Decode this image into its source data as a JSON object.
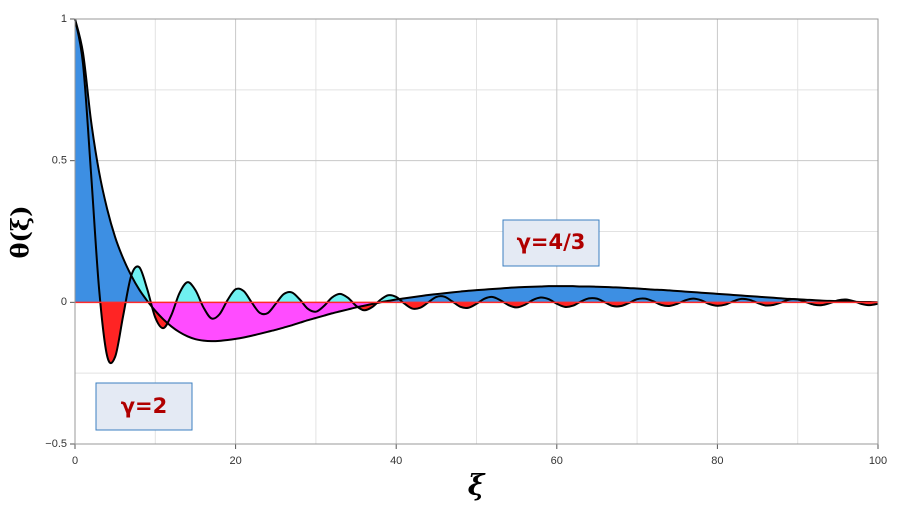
{
  "chart_data": {
    "type": "line",
    "x_label": "ξ",
    "y_label": "θ(ξ)",
    "xlim": [
      0,
      100
    ],
    "ylim": [
      -0.5,
      1
    ],
    "xticks": [
      0,
      20,
      40,
      60,
      80,
      100
    ],
    "yticks": [
      {
        "value": -0.5,
        "label": "−0.5"
      },
      0,
      0.5,
      1
    ],
    "x_minor_ticks": [
      10,
      30,
      50,
      70,
      90
    ],
    "y_minor_ticks": [
      -0.25,
      0.25,
      0.75
    ],
    "grid": true,
    "zero_line_color": "#ff2a2a",
    "x": [
      0,
      1,
      2,
      3,
      4,
      5,
      6,
      7,
      8,
      9,
      10,
      11,
      12,
      13,
      14,
      15,
      16,
      17,
      18,
      19,
      20,
      21,
      22,
      23,
      24,
      25,
      26,
      27,
      28,
      29,
      30,
      31,
      32,
      33,
      34,
      35,
      36,
      37,
      38,
      39,
      40,
      41,
      42,
      43,
      44,
      45,
      46,
      47,
      48,
      49,
      50,
      51,
      52,
      53,
      54,
      55,
      56,
      57,
      58,
      59,
      60,
      61,
      62,
      63,
      64,
      65,
      66,
      67,
      68,
      69,
      70,
      71,
      72,
      73,
      74,
      75,
      76,
      77,
      78,
      79,
      80,
      81,
      82,
      83,
      84,
      85,
      86,
      87,
      88,
      89,
      90,
      91,
      92,
      93,
      94,
      95,
      96,
      97,
      98,
      99,
      100
    ],
    "series": [
      {
        "name": "γ=2",
        "color": "#000000",
        "fill_positive": "#6ff0f0",
        "fill_negative": "#ff2424",
        "values": [
          1,
          0.841,
          0.455,
          0.047,
          -0.189,
          -0.192,
          -0.047,
          0.094,
          0.124,
          0.046,
          -0.054,
          -0.091,
          -0.045,
          0.032,
          0.071,
          0.043,
          -0.018,
          -0.057,
          -0.042,
          0.008,
          0.046,
          0.04,
          0,
          -0.037,
          -0.038,
          -0.005,
          0.029,
          0.035,
          0.01,
          -0.023,
          -0.033,
          -0.013,
          0.017,
          0.03,
          0.016,
          -0.012,
          -0.028,
          -0.017,
          0.008,
          0.025,
          0.019,
          -0.004,
          -0.022,
          -0.019,
          0,
          0.019,
          0.02,
          0.003,
          -0.016,
          -0.019,
          -0.005,
          0.013,
          0.019,
          0.007,
          -0.01,
          -0.018,
          -0.009,
          0.008,
          0.017,
          0.011,
          -0.005,
          -0.016,
          -0.012,
          0.003,
          0.014,
          0.013,
          0,
          -0.013,
          -0.013,
          -0.002,
          0.011,
          0.013,
          0.004,
          -0.009,
          -0.013,
          -0.005,
          0.007,
          0.013,
          0.007,
          -0.006,
          -0.012,
          -0.008,
          0.004,
          0.012,
          0.009,
          -0.002,
          -0.011,
          -0.009,
          0,
          0.01,
          0.01,
          0.001,
          -0.008,
          -0.01,
          -0.003,
          0.007,
          0.01,
          0.004,
          -0.006,
          -0.01,
          -0.005
        ]
      },
      {
        "name": "γ=4/3",
        "color": "#000000",
        "fill_positive": "#3d8fe3",
        "fill_negative": "#ff4cff",
        "values": [
          1,
          0.88,
          0.64,
          0.46,
          0.33,
          0.23,
          0.155,
          0.095,
          0.045,
          0.005,
          -0.03,
          -0.06,
          -0.085,
          -0.105,
          -0.12,
          -0.13,
          -0.135,
          -0.137,
          -0.136,
          -0.133,
          -0.129,
          -0.124,
          -0.118,
          -0.111,
          -0.104,
          -0.097,
          -0.089,
          -0.081,
          -0.072,
          -0.063,
          -0.055,
          -0.047,
          -0.039,
          -0.032,
          -0.025,
          -0.018,
          -0.012,
          -0.006,
          0,
          0.005,
          0.01,
          0.014,
          0.018,
          0.022,
          0.026,
          0.029,
          0.032,
          0.035,
          0.038,
          0.041,
          0.043,
          0.045,
          0.047,
          0.049,
          0.051,
          0.053,
          0.054,
          0.055,
          0.056,
          0.057,
          0.057,
          0.057,
          0.057,
          0.056,
          0.056,
          0.055,
          0.054,
          0.053,
          0.052,
          0.05,
          0.049,
          0.047,
          0.045,
          0.044,
          0.042,
          0.04,
          0.038,
          0.036,
          0.034,
          0.032,
          0.03,
          0.028,
          0.026,
          0.024,
          0.022,
          0.02,
          0.018,
          0.016,
          0.014,
          0.012,
          0.011,
          0.009,
          0.008,
          0.006,
          0.005,
          0.004,
          0.003,
          0.002,
          0.001,
          0.001,
          0
        ]
      }
    ]
  }
}
